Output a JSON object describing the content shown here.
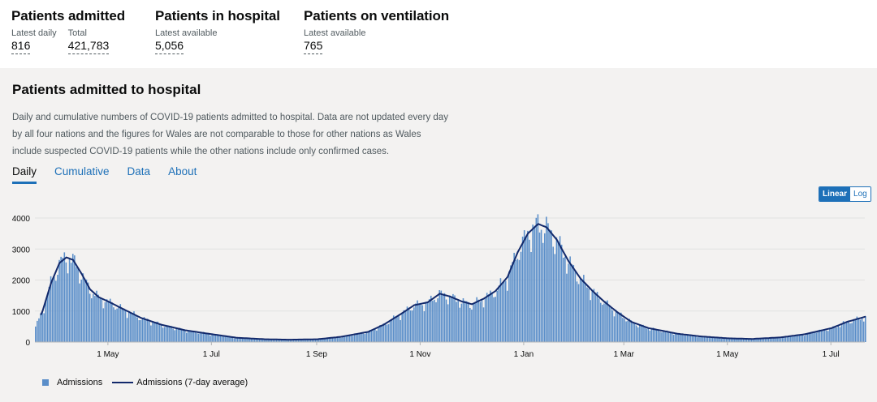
{
  "headline": {
    "admitted": {
      "title": "Patients admitted",
      "latest_label": "Latest daily",
      "latest_value": "816",
      "total_label": "Total",
      "total_value": "421,783"
    },
    "hospital": {
      "title": "Patients in hospital",
      "label": "Latest available",
      "value": "5,056"
    },
    "ventilation": {
      "title": "Patients on ventilation",
      "label": "Latest available",
      "value": "765"
    }
  },
  "card": {
    "title": "Patients admitted to hospital",
    "description": "Daily and cumulative numbers of COVID-19 patients admitted to hospital. Data are not updated every day by all four nations and the figures for Wales are not comparable to those for other nations as Wales include suspected COVID-19 patients while the other nations include only confirmed cases.",
    "tabs": [
      {
        "label": "Daily",
        "active": true
      },
      {
        "label": "Cumulative",
        "active": false
      },
      {
        "label": "Data",
        "active": false
      },
      {
        "label": "About",
        "active": false
      }
    ],
    "scale": {
      "linear": "Linear",
      "log": "Log",
      "selected": "Linear"
    }
  },
  "legend": {
    "bars": "Admissions",
    "line": "Admissions (7-day average)"
  },
  "colors": {
    "bar": "#5a8ec9",
    "line": "#12296b",
    "link": "#1d70b8",
    "card_bg": "#f3f2f1"
  },
  "chart_data": {
    "type": "bar",
    "title": "",
    "xlabel": "",
    "ylabel": "",
    "ylim": [
      0,
      4000
    ],
    "yticks": [
      0,
      1000,
      2000,
      3000,
      4000
    ],
    "x_start": "2020-03-19",
    "x_end": "2021-07-21",
    "xticks": [
      {
        "date": "2020-05-01",
        "label": "1 May"
      },
      {
        "date": "2020-07-01",
        "label": "1 Jul"
      },
      {
        "date": "2020-09-01",
        "label": "1 Sep"
      },
      {
        "date": "2020-11-01",
        "label": "1 Nov"
      },
      {
        "date": "2021-01-01",
        "label": "1 Jan"
      },
      {
        "date": "2021-03-01",
        "label": "1 Mar"
      },
      {
        "date": "2021-05-01",
        "label": "1 May"
      },
      {
        "date": "2021-07-01",
        "label": "1 Jul"
      }
    ],
    "series": [
      {
        "name": "Admissions",
        "kind": "bar"
      },
      {
        "name": "Admissions (7-day average)",
        "kind": "line"
      }
    ],
    "seven_day_average_points": [
      [
        "2020-03-19",
        500
      ],
      [
        "2020-03-23",
        1000
      ],
      [
        "2020-03-28",
        1900
      ],
      [
        "2020-04-02",
        2550
      ],
      [
        "2020-04-06",
        2730
      ],
      [
        "2020-04-10",
        2650
      ],
      [
        "2020-04-15",
        2200
      ],
      [
        "2020-04-20",
        1700
      ],
      [
        "2020-04-25",
        1450
      ],
      [
        "2020-05-01",
        1300
      ],
      [
        "2020-05-10",
        1050
      ],
      [
        "2020-05-20",
        780
      ],
      [
        "2020-06-01",
        560
      ],
      [
        "2020-06-15",
        380
      ],
      [
        "2020-07-01",
        250
      ],
      [
        "2020-07-15",
        140
      ],
      [
        "2020-08-01",
        90
      ],
      [
        "2020-08-15",
        75
      ],
      [
        "2020-09-01",
        90
      ],
      [
        "2020-09-15",
        170
      ],
      [
        "2020-10-01",
        330
      ],
      [
        "2020-10-10",
        560
      ],
      [
        "2020-10-20",
        900
      ],
      [
        "2020-10-28",
        1190
      ],
      [
        "2020-11-05",
        1280
      ],
      [
        "2020-11-12",
        1560
      ],
      [
        "2020-11-18",
        1470
      ],
      [
        "2020-11-25",
        1310
      ],
      [
        "2020-12-01",
        1220
      ],
      [
        "2020-12-08",
        1400
      ],
      [
        "2020-12-15",
        1650
      ],
      [
        "2020-12-22",
        2100
      ],
      [
        "2020-12-28",
        2900
      ],
      [
        "2021-01-03",
        3500
      ],
      [
        "2021-01-09",
        3810
      ],
      [
        "2021-01-14",
        3700
      ],
      [
        "2021-01-20",
        3300
      ],
      [
        "2021-01-27",
        2600
      ],
      [
        "2021-02-03",
        2050
      ],
      [
        "2021-02-10",
        1650
      ],
      [
        "2021-02-17",
        1300
      ],
      [
        "2021-02-25",
        950
      ],
      [
        "2021-03-05",
        650
      ],
      [
        "2021-03-15",
        450
      ],
      [
        "2021-04-01",
        270
      ],
      [
        "2021-04-15",
        180
      ],
      [
        "2021-05-01",
        120
      ],
      [
        "2021-05-15",
        100
      ],
      [
        "2021-06-01",
        150
      ],
      [
        "2021-06-15",
        250
      ],
      [
        "2021-07-01",
        450
      ],
      [
        "2021-07-10",
        650
      ],
      [
        "2021-07-21",
        820
      ]
    ]
  }
}
